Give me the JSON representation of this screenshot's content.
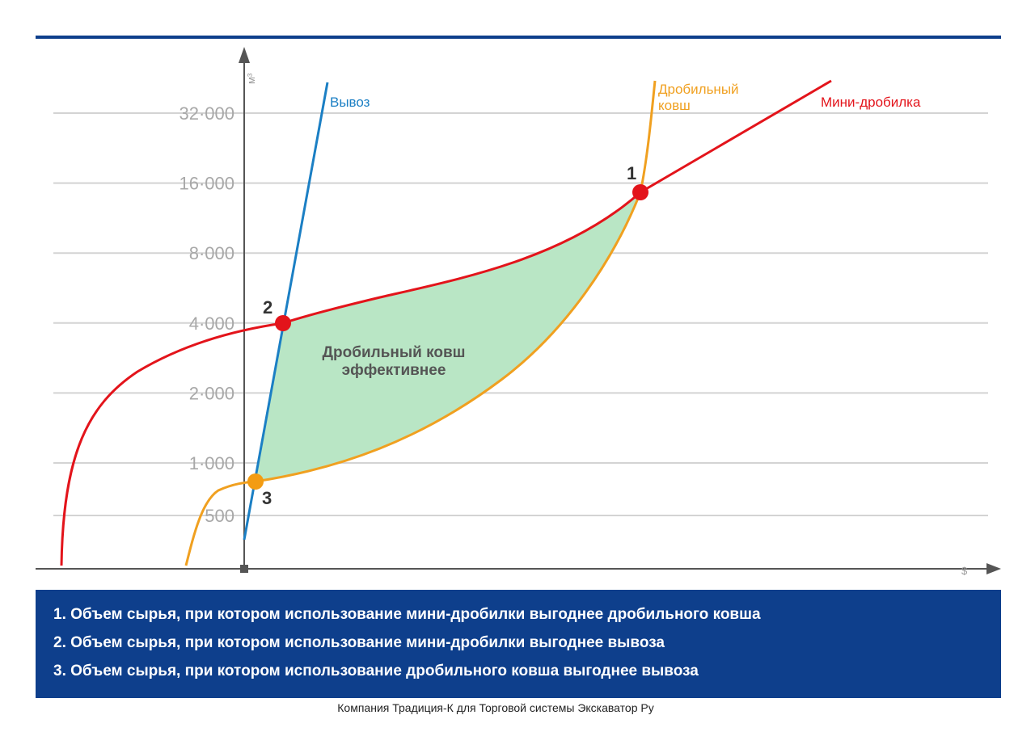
{
  "chart_data": {
    "type": "line",
    "title": "",
    "xlabel": "$",
    "ylabel": "м³",
    "y_scale": "log2",
    "y_ticks": [
      {
        "value": 500,
        "label": "500"
      },
      {
        "value": 1000,
        "label": "1·000"
      },
      {
        "value": 2000,
        "label": "2·000"
      },
      {
        "value": 4000,
        "label": "4·000"
      },
      {
        "value": 8000,
        "label": "8·000"
      },
      {
        "value": 16000,
        "label": "16·000"
      },
      {
        "value": 32000,
        "label": "32·000"
      }
    ],
    "series": [
      {
        "name": "Вывоз",
        "color": "#1b7fc4"
      },
      {
        "name": "Дробильный ковш",
        "name_lines": [
          "Дробильный",
          "ковш"
        ],
        "color": "#f0a020"
      },
      {
        "name": "Мини-дробилка",
        "color": "#e3141b"
      }
    ],
    "markers": [
      {
        "label": "1",
        "color": "#e3141b"
      },
      {
        "label": "2",
        "color": "#e3141b"
      },
      {
        "label": "3",
        "color": "#f39c12"
      }
    ],
    "region": {
      "label_lines": [
        "Дробильный ковш",
        "эффективнее"
      ],
      "color": "#b9e6c5"
    }
  },
  "legend": {
    "items": [
      "1. Объем сырья, при котором использование мини-дробилки выгоднее дробильного ковша",
      "2. Объем сырья, при котором использование мини-дробилки выгоднее вывоза",
      "3. Объем сырья, при котором использование дробильного ковша выгоднее вывоза"
    ]
  },
  "footer": {
    "text": "Компания Традиция-К для Торговой системы Экскаватор Ру"
  },
  "colors": {
    "top_rule": "#0e3f8c",
    "legend_bg": "#0e3f8c",
    "grid": "#d3d3d3",
    "axis": "#555555"
  }
}
